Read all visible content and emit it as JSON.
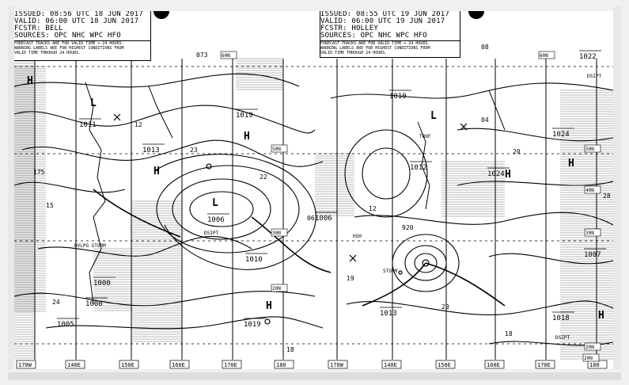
{
  "left_chart": {
    "issued": "ISSUED: 08:56 UTC 18 JUN 2017",
    "valid": "VALID: 06:00 UTC 18 JUN 2017",
    "forecaster": "FCSTR: BELL",
    "sources": "SOURCES: OPC NHC WPC HFO",
    "note_1": "FORECAST TRACKS ARE FOR VALID TIME + 24 HOURS.",
    "note_2": "WARNING LABELS ARE FOR HIGHEST CONDITIONS FROM",
    "note_3": "VALID TIME THROUGH 24 HOURS."
  },
  "right_chart": {
    "issued": "ISSUED: 08:55 UTC 19 JUN 2017",
    "valid": "VALID: 06:00 UTC 19 JUN 2017",
    "forecaster": "FCSTR: HOLLEY",
    "sources": "SOURCES: OPC NHC WPC HFO",
    "note_1": "FORECAST TRACKS ARE FOR VALID TIME + 24 HOURS.",
    "note_2": "WARNING LABELS ARE FOR HIGHEST CONDITIONS FROM",
    "note_3": "VALID TIME THROUGH 24 HOURS."
  },
  "longitudes": [
    "170W",
    "140E",
    "150E",
    "160E",
    "170E",
    "180",
    "170W",
    "140E",
    "150E",
    "160E",
    "170E",
    "180"
  ],
  "latitudes": [
    "60N",
    "50N",
    "30N",
    "20N",
    "20N",
    "60N",
    "50N",
    "40N",
    "30N",
    "20N"
  ],
  "pressure_labels": [
    "1011",
    "1013",
    "1006",
    "1019",
    "1010",
    "1000",
    "1019",
    "1010",
    "1013",
    "1024",
    "1024",
    "1022",
    "1018",
    "1007",
    "1008",
    "1005",
    "1012",
    "1006"
  ],
  "contour_labels": [
    "12",
    "23",
    "22",
    "06",
    "19",
    "20",
    "18",
    "18",
    "04",
    "12",
    "15",
    "20",
    "28",
    "24",
    "08",
    "073",
    "175"
  ],
  "system_labels": {
    "dsipt_left": "DSIPT",
    "dsipt_right": "DSIPT",
    "dsipt_bottom": "DSIPT",
    "storm": "STORM",
    "dvlpg_storm": "DVLPG STORM",
    "trof": "TROF",
    "hsh": "HSH",
    "low_value": "920"
  },
  "pressure_centers": [
    "H",
    "H",
    "H",
    "H",
    "H",
    "H",
    "H",
    "L",
    "L",
    "L"
  ]
}
